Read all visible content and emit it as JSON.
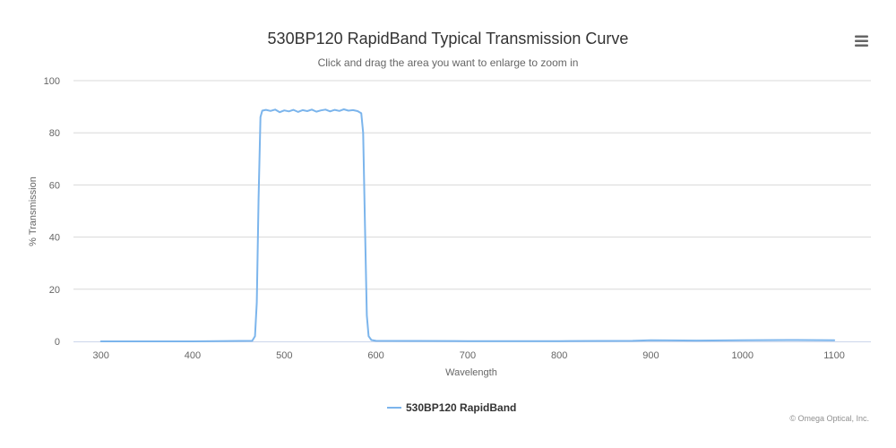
{
  "chart_data": {
    "type": "line",
    "title": "530BP120 RapidBand Typical Transmission Curve",
    "subtitle": "Click and drag the area you want to enlarge to zoom in",
    "xlabel": "Wavelength",
    "ylabel": "% Transmission",
    "xlim": [
      270,
      1140
    ],
    "ylim": [
      0,
      100
    ],
    "x_ticks": [
      300,
      400,
      500,
      600,
      700,
      800,
      900,
      1000,
      1100
    ],
    "y_ticks": [
      0,
      20,
      40,
      60,
      80,
      100
    ],
    "grid": true,
    "legend_position": "bottom-center",
    "series": [
      {
        "name": "530BP120 RapidBand",
        "color": "#7cb5ec",
        "x": [
          300,
          400,
          465,
          468,
          470,
          472,
          474,
          476,
          480,
          485,
          490,
          495,
          500,
          505,
          510,
          515,
          520,
          525,
          530,
          535,
          540,
          545,
          550,
          555,
          560,
          565,
          570,
          575,
          580,
          584,
          586,
          588,
          590,
          592,
          595,
          600,
          700,
          800,
          880,
          900,
          950,
          1000,
          1050,
          1100
        ],
        "y": [
          0,
          0,
          0.2,
          2,
          15,
          55,
          86,
          88.5,
          88.8,
          88.4,
          88.9,
          87.9,
          88.6,
          88.2,
          88.8,
          88.0,
          88.7,
          88.3,
          88.9,
          88.1,
          88.6,
          88.9,
          88.2,
          88.8,
          88.4,
          89.0,
          88.5,
          88.7,
          88.3,
          87.5,
          80,
          45,
          10,
          2,
          0.5,
          0.2,
          0.1,
          0.1,
          0.2,
          0.4,
          0.3,
          0.4,
          0.5,
          0.4
        ]
      }
    ]
  },
  "credits": "© Omega Optical, Inc.",
  "menu": {
    "icon": "hamburger-menu-icon"
  }
}
